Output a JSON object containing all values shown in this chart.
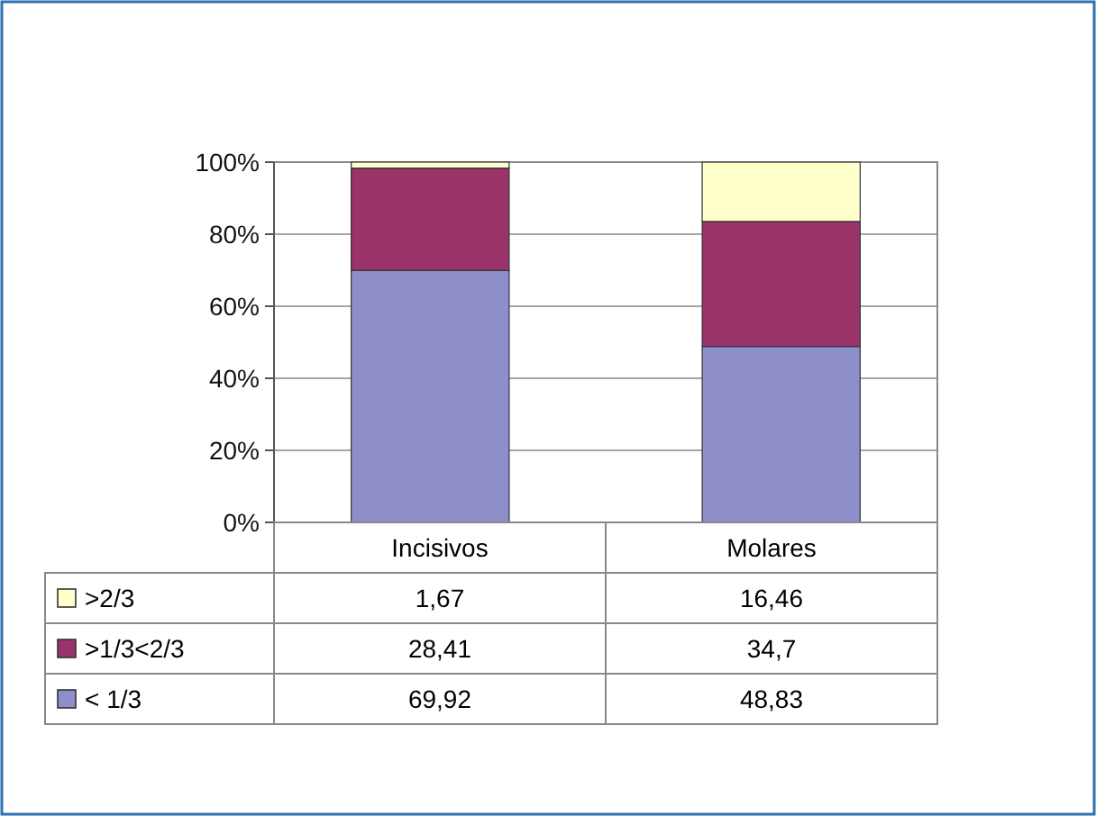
{
  "chart_data": {
    "type": "bar",
    "stacked": true,
    "categories": [
      "Incisivos",
      "Molares"
    ],
    "series": [
      {
        "name": "< 1/3",
        "color": "#8e8ecb",
        "values": [
          69.92,
          48.83
        ],
        "value_labels": [
          "69,92",
          "48,83"
        ]
      },
      {
        "name": ">1/3<2/3",
        "color": "#99336a",
        "values": [
          28.41,
          34.7
        ],
        "value_labels": [
          "28,41",
          "34,7"
        ]
      },
      {
        "name": ">2/3",
        "color": "#ffffcc",
        "values": [
          1.67,
          16.46
        ],
        "value_labels": [
          "1,67",
          "16,46"
        ]
      }
    ],
    "ylim": [
      0,
      100
    ],
    "yticks": [
      {
        "value": 0,
        "label": "0%"
      },
      {
        "value": 20,
        "label": "20%"
      },
      {
        "value": 40,
        "label": "40%"
      },
      {
        "value": 60,
        "label": "60%"
      },
      {
        "value": 80,
        "label": "80%"
      },
      {
        "value": 100,
        "label": "100%"
      }
    ],
    "grid": "y",
    "legend": "bottom"
  }
}
